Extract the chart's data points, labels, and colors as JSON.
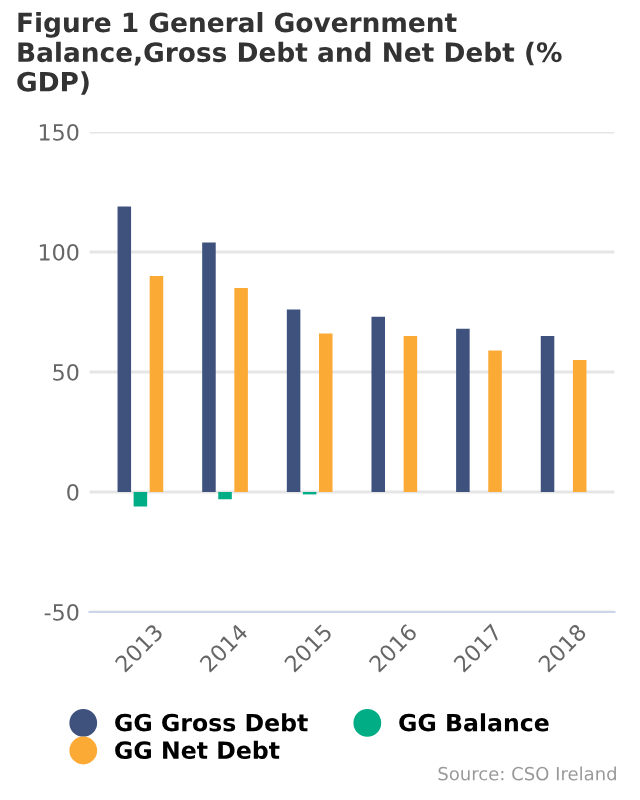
{
  "chart_data": {
    "type": "bar",
    "title": "Figure 1 General Government Balance,Gross Debt and Net Debt (% GDP)",
    "categories": [
      "2013",
      "2014",
      "2015",
      "2016",
      "2017",
      "2018"
    ],
    "series": [
      {
        "name": "GG Gross Debt",
        "color": "#3f527e",
        "values": [
          119,
          104,
          76,
          73,
          68,
          65
        ]
      },
      {
        "name": "GG Balance",
        "color": "#00ad85",
        "values": [
          -6,
          -3,
          -1,
          0,
          0,
          0
        ]
      },
      {
        "name": "GG Net Debt",
        "color": "#fbaa35",
        "values": [
          90,
          85,
          66,
          65,
          59,
          55
        ]
      }
    ],
    "ylim": [
      -50,
      150
    ],
    "yticks": [
      -50,
      0,
      50,
      100,
      150
    ],
    "grid": "y",
    "legend": "bottom",
    "annotations": [
      "Source: CSO Ireland"
    ]
  }
}
